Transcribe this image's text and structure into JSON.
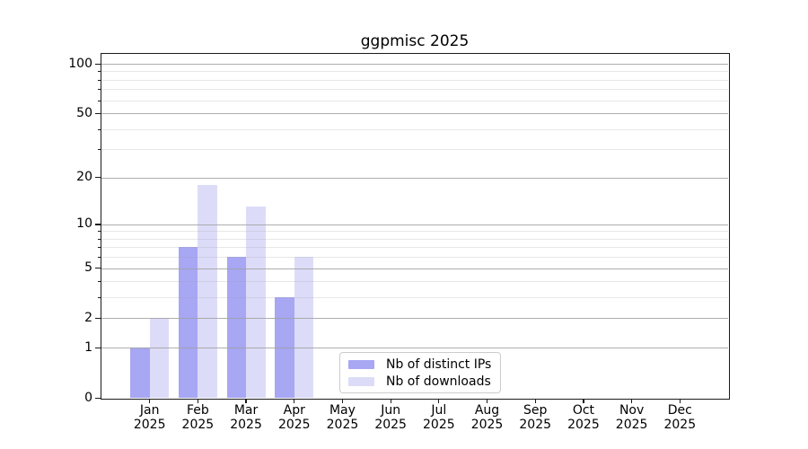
{
  "chart_data": {
    "type": "bar",
    "title": "ggpmisc 2025",
    "x_tick_months": [
      "Jan",
      "Feb",
      "Mar",
      "Apr",
      "May",
      "Jun",
      "Jul",
      "Aug",
      "Sep",
      "Oct",
      "Nov",
      "Dec"
    ],
    "x_tick_year": "2025",
    "series": [
      {
        "name": "Nb of distinct IPs",
        "color": "#a7a7f4",
        "values": [
          1,
          7,
          6,
          3,
          0,
          0,
          0,
          0,
          0,
          0,
          0,
          0
        ]
      },
      {
        "name": "Nb of downloads",
        "color": "#dcdcf9",
        "values": [
          2,
          18,
          13,
          6,
          0,
          0,
          0,
          0,
          0,
          0,
          0,
          0
        ]
      }
    ],
    "y_scale": "log1p",
    "y_major_ticks": [
      0,
      1,
      2,
      5,
      10,
      20,
      50,
      100
    ],
    "y_minor_ticks": [
      3,
      4,
      6,
      7,
      8,
      9,
      30,
      40,
      60,
      70,
      80,
      90
    ],
    "ylim": [
      0,
      114.8
    ],
    "xlim": [
      -1,
      12
    ],
    "grid": true,
    "legend_position": "inside-bottom-center",
    "colors": {
      "major_grid": "#b0b0b0",
      "minor_grid": "#e8e8e8",
      "axis": "#1a1a1a",
      "background": "#ffffff"
    }
  }
}
